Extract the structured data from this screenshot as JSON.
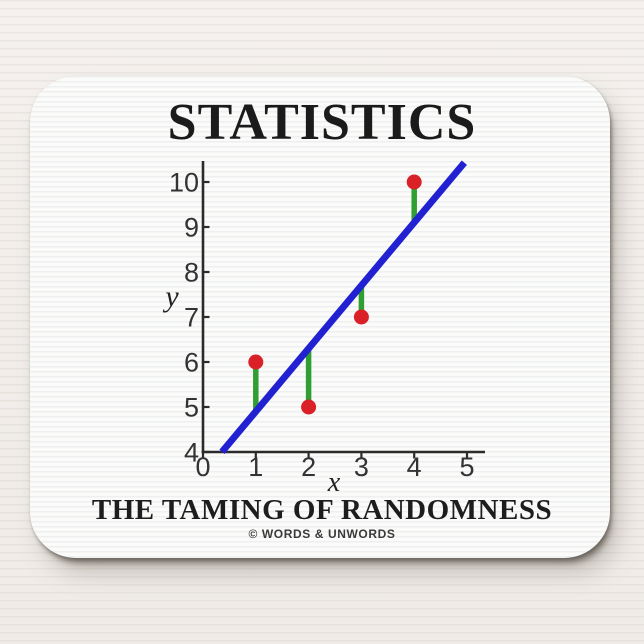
{
  "header": {
    "title": "STATISTICS"
  },
  "footer": {
    "subtitle": "THE TAMING OF RANDOMNESS",
    "copyright": "© WORDS & UNWORDS"
  },
  "chart_data": {
    "type": "scatter",
    "title": "",
    "xlabel": "x",
    "ylabel": "y",
    "points": [
      {
        "x": 1,
        "y": 6
      },
      {
        "x": 2,
        "y": 5
      },
      {
        "x": 3,
        "y": 7
      },
      {
        "x": 4,
        "y": 10
      }
    ],
    "regression_line": {
      "slope": 1.4,
      "intercept": 3.5,
      "x_start": 0.36,
      "x_end": 4.95
    },
    "residuals_shown": true,
    "xticks": [
      0,
      1,
      2,
      3,
      4,
      5
    ],
    "yticks": [
      4,
      5,
      6,
      7,
      8,
      9,
      10
    ],
    "xlim": [
      0,
      5.35
    ],
    "ylim": [
      4,
      10.45
    ],
    "grid": false,
    "colors": {
      "regression_line": "#2121d2",
      "points": "#d92127",
      "residuals": "#2f9e33",
      "axis": "#2b2b2b",
      "tick_labels": "#333333"
    }
  }
}
